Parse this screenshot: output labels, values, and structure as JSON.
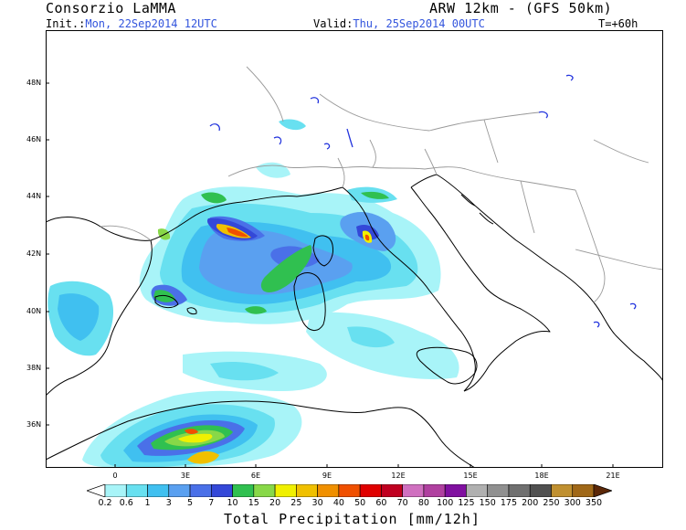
{
  "header": {
    "producer": "Consorzio LaMMA",
    "model": "ARW 12km - (GFS 50km)",
    "init_label": "Init.:",
    "init_value": "Mon, 22Sep2014 12UTC",
    "valid_label": "Valid:",
    "valid_value": "Thu, 25Sep2014 00UTC",
    "step": "T=+60h"
  },
  "map": {
    "lat_labels": [
      "48N",
      "46N",
      "44N",
      "42N",
      "40N",
      "38N",
      "36N"
    ],
    "lon_labels": [
      "0",
      "3E",
      "6E",
      "9E",
      "12E",
      "15E",
      "18E",
      "21E"
    ],
    "lat_range": [
      34.5,
      49.5
    ],
    "lon_range": [
      -2.8,
      22.0
    ],
    "sea_color": "#ffffff",
    "coast_color": "#000000",
    "border_color": "#999999",
    "lake_color": "#2233dd"
  },
  "colorbar": {
    "title": "Total Precipitation [mm/12h]",
    "levels": [
      "0.2",
      "0.6",
      "1",
      "3",
      "5",
      "7",
      "10",
      "15",
      "20",
      "25",
      "30",
      "40",
      "50",
      "60",
      "70",
      "80",
      "100",
      "125",
      "150",
      "175",
      "200",
      "250",
      "300",
      "350"
    ],
    "colors": [
      "#a8f4f8",
      "#68e0f0",
      "#40c0f0",
      "#5aa0f0",
      "#4a70e8",
      "#3448d8",
      "#30c050",
      "#88d848",
      "#f0f000",
      "#f0c000",
      "#f09000",
      "#f05000",
      "#e00000",
      "#c00020",
      "#d070c0",
      "#b040a0",
      "#8010a0",
      "#b0b0b0",
      "#909090",
      "#707070",
      "#505050",
      "#c09030",
      "#a06818",
      "#784010",
      "#5c2808"
    ]
  }
}
